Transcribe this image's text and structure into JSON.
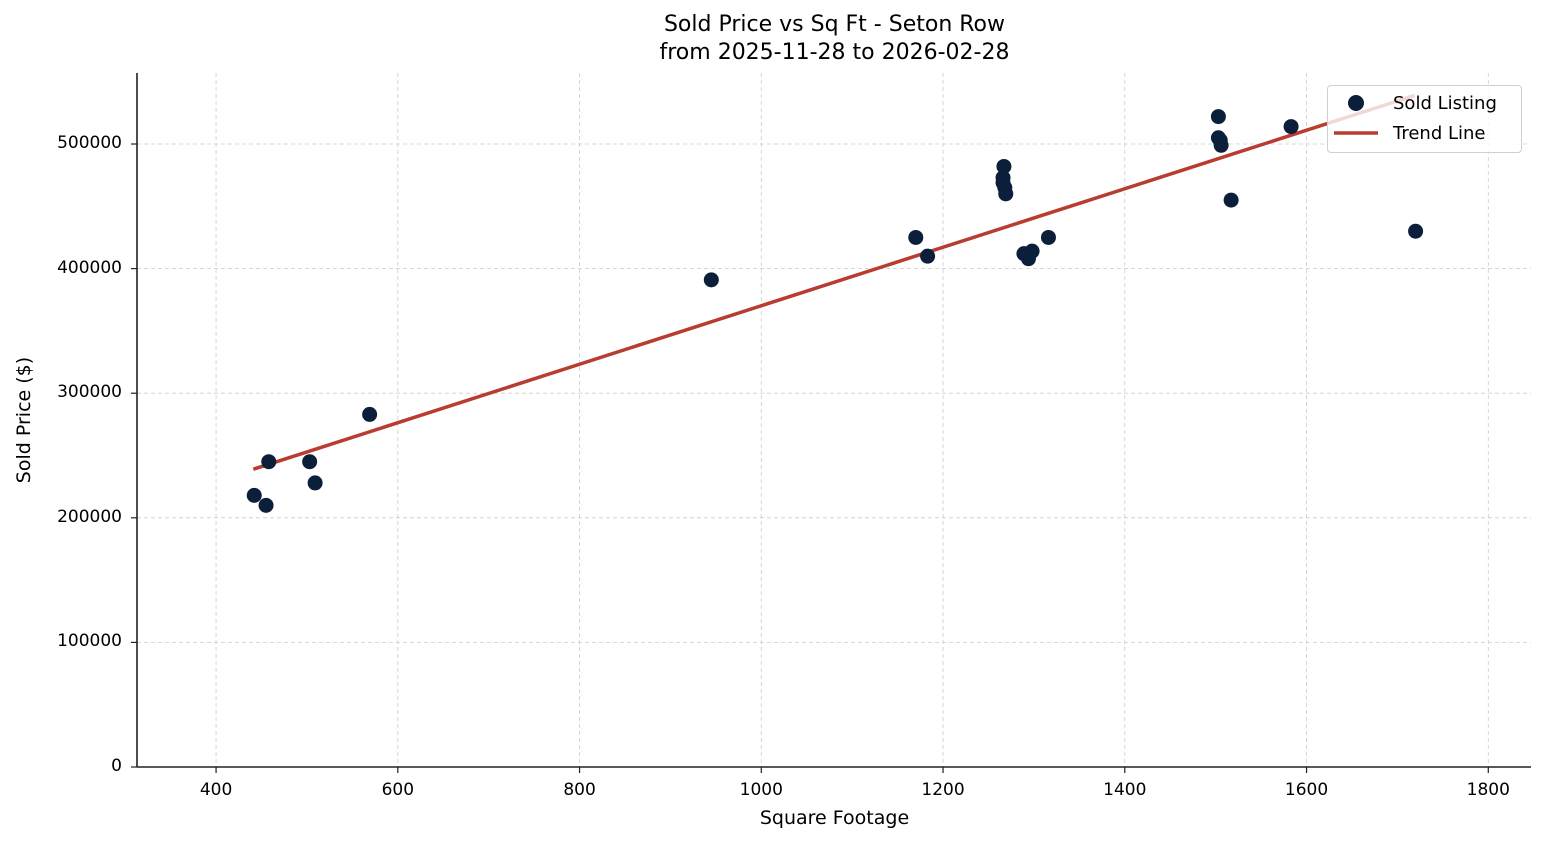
{
  "chart_data": {
    "type": "scatter",
    "title": "Sold Price vs Sq Ft - Seton Row",
    "subtitle": "from 2025-11-28 to 2026-02-28",
    "xlabel": "Square Footage",
    "ylabel": "Sold Price ($)",
    "xlim": [
      313,
      1847
    ],
    "ylim": [
      0,
      557000
    ],
    "x_ticks": [
      400,
      600,
      800,
      1000,
      1200,
      1400,
      1600,
      1800
    ],
    "y_ticks": [
      0,
      100000,
      200000,
      300000,
      400000,
      500000
    ],
    "grid": true,
    "legend_position": "upper right",
    "legend": [
      "Sold Listing",
      "Trend Line"
    ],
    "colors": {
      "points": "#0b1f3a",
      "trend": "#b83c30",
      "grid": "#cccccc",
      "axis": "#222222"
    },
    "series": [
      {
        "name": "Sold Listing",
        "type": "scatter",
        "points": [
          {
            "x": 442,
            "y": 218000
          },
          {
            "x": 455,
            "y": 210000
          },
          {
            "x": 458,
            "y": 245000
          },
          {
            "x": 503,
            "y": 245000
          },
          {
            "x": 509,
            "y": 228000
          },
          {
            "x": 569,
            "y": 283000
          },
          {
            "x": 945,
            "y": 391000
          },
          {
            "x": 1170,
            "y": 425000
          },
          {
            "x": 1183,
            "y": 410000
          },
          {
            "x": 1267,
            "y": 482000
          },
          {
            "x": 1266,
            "y": 473000
          },
          {
            "x": 1266,
            "y": 469000
          },
          {
            "x": 1268,
            "y": 465000
          },
          {
            "x": 1269,
            "y": 460000
          },
          {
            "x": 1289,
            "y": 412000
          },
          {
            "x": 1294,
            "y": 408000
          },
          {
            "x": 1298,
            "y": 414000
          },
          {
            "x": 1316,
            "y": 425000
          },
          {
            "x": 1503,
            "y": 522000
          },
          {
            "x": 1503,
            "y": 505000
          },
          {
            "x": 1505,
            "y": 503000
          },
          {
            "x": 1506,
            "y": 499000
          },
          {
            "x": 1517,
            "y": 455000
          },
          {
            "x": 1583,
            "y": 514000
          },
          {
            "x": 1720,
            "y": 430000
          }
        ]
      },
      {
        "name": "Trend Line",
        "type": "line",
        "points": [
          {
            "x": 441,
            "y": 239000
          },
          {
            "x": 1719,
            "y": 539000
          }
        ]
      }
    ]
  },
  "title_line1": "Sold Price vs Sq Ft - Seton Row",
  "title_line2": "from 2025-11-28 to 2026-02-28",
  "xlabel": "Square Footage",
  "ylabel": "Sold Price ($)",
  "legend": {
    "scatter_label": "Sold Listing",
    "line_label": "Trend Line"
  }
}
